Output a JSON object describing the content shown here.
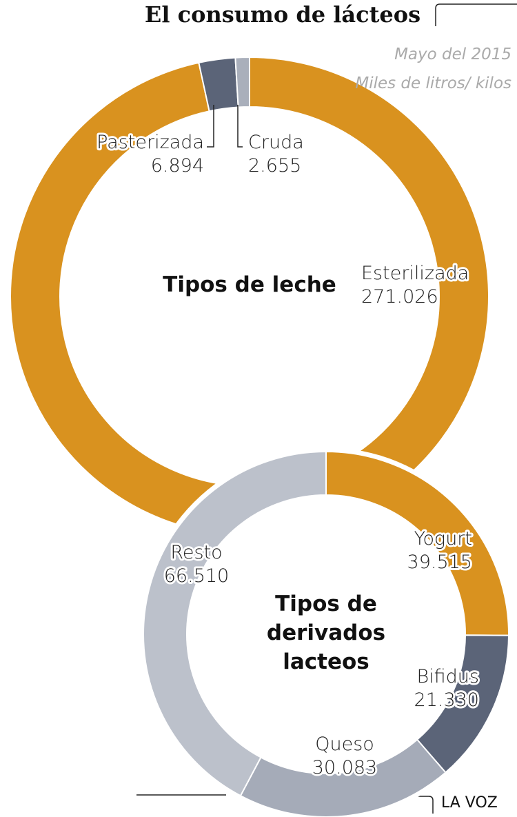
{
  "title": "El consumo de lácteos",
  "subtitle": "Mayo del 2015",
  "note": "Miles de litros/ kilos",
  "source": "LA VOZ",
  "chart_data": [
    {
      "type": "donut",
      "title": "Tipos de leche",
      "categories": [
        "Esterilizada",
        "Pasterizada",
        "Cruda"
      ],
      "values": [
        271026,
        6894,
        2655
      ],
      "value_labels": [
        "271.026",
        "6.894",
        "2.655"
      ],
      "colors": [
        "#d9921f",
        "#5b6478",
        "#a9afbb"
      ]
    },
    {
      "type": "donut",
      "title": "Tipos de derivados lacteos",
      "categories": [
        "Yogurt",
        "Bifidus",
        "Queso",
        "Resto"
      ],
      "values": [
        39515,
        21330,
        30083,
        66510
      ],
      "value_labels": [
        "39.515",
        "21.330",
        "30.083",
        "66.510"
      ],
      "colors": [
        "#d9921f",
        "#5b6478",
        "#a5abb8",
        "#bcc1cb"
      ]
    }
  ]
}
